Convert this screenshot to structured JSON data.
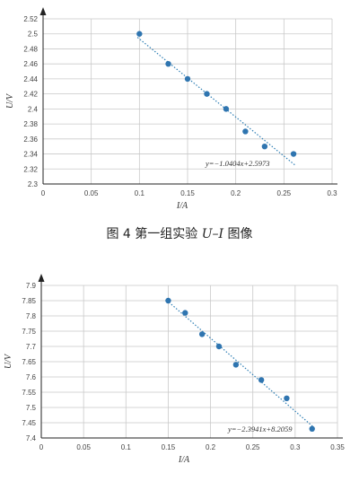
{
  "caption": {
    "label": "图 4 第一组实验 ",
    "var": "U–I",
    "suffix": " 图像"
  },
  "chart_data": [
    {
      "type": "scatter",
      "xlabel": "I/A",
      "ylabel": "U/V",
      "xlim": [
        0,
        0.3
      ],
      "ylim": [
        2.3,
        2.52
      ],
      "xticks": [
        "0",
        "0.05",
        "0.1",
        "0.15",
        "0.2",
        "0.25",
        "0.3"
      ],
      "yticks": [
        "2.3",
        "2.32",
        "2.34",
        "2.36",
        "2.38",
        "2.4",
        "2.42",
        "2.44",
        "2.46",
        "2.48",
        "2.5",
        "2.52"
      ],
      "grid": true,
      "series": [
        {
          "x": [
            0.1,
            0.13,
            0.15,
            0.17,
            0.19,
            0.21,
            0.23,
            0.26
          ],
          "y": [
            2.5,
            2.46,
            2.44,
            2.42,
            2.4,
            2.37,
            2.35,
            2.34
          ]
        }
      ],
      "trendline": {
        "slope": -1.0404,
        "intercept": 2.5973,
        "x_range": [
          0.1,
          0.26
        ],
        "label": "y=−1.0404x+2.5973"
      }
    },
    {
      "type": "scatter",
      "xlabel": "I/A",
      "ylabel": "U/V",
      "xlim": [
        0,
        0.35
      ],
      "ylim": [
        7.4,
        7.9
      ],
      "xticks": [
        "0",
        "0.05",
        "0.1",
        "0.15",
        "0.2",
        "0.25",
        "0.3",
        "0.35"
      ],
      "yticks": [
        "7.4",
        "7.45",
        "7.5",
        "7.55",
        "7.6",
        "7.65",
        "7.7",
        "7.75",
        "7.8",
        "7.85",
        "7.9"
      ],
      "grid": true,
      "series": [
        {
          "x": [
            0.15,
            0.17,
            0.19,
            0.21,
            0.23,
            0.26,
            0.29,
            0.32
          ],
          "y": [
            7.85,
            7.81,
            7.74,
            7.7,
            7.64,
            7.59,
            7.53,
            7.43
          ]
        }
      ],
      "trendline": {
        "slope": -2.3941,
        "intercept": 8.2059,
        "x_range": [
          0.15,
          0.32
        ],
        "label": "y=−2.3941x+8.2059"
      }
    }
  ]
}
